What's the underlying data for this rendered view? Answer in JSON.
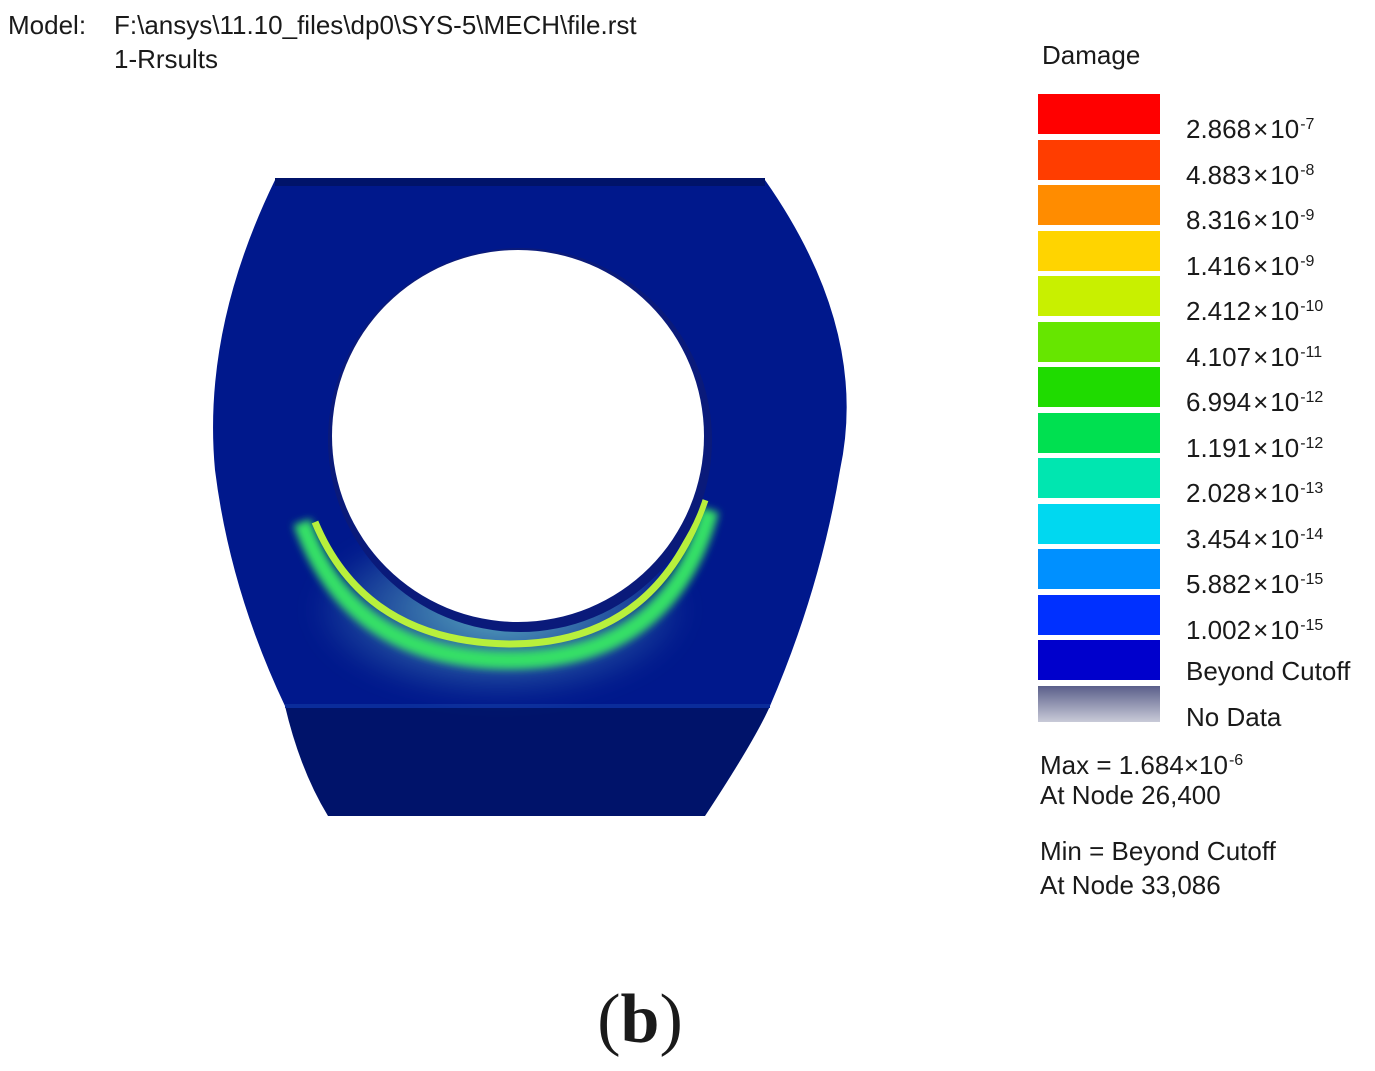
{
  "header": {
    "model_label": "Model:",
    "model_path": "F:\\ansys\\11.10_files\\dp0\\SYS-5\\MECH\\file.rst",
    "results_name": "1-Rrsults"
  },
  "legend": {
    "title": "Damage",
    "bands": [
      {
        "mantissa": "2.868",
        "exponent": "-7",
        "color": "#ff0000"
      },
      {
        "mantissa": "4.883",
        "exponent": "-8",
        "color": "#ff3d00"
      },
      {
        "mantissa": "8.316",
        "exponent": "-9",
        "color": "#ff8c00"
      },
      {
        "mantissa": "1.416",
        "exponent": "-9",
        "color": "#ffd400"
      },
      {
        "mantissa": "2.412",
        "exponent": "-10",
        "color": "#c8f000"
      },
      {
        "mantissa": "4.107",
        "exponent": "-11",
        "color": "#66e600"
      },
      {
        "mantissa": "6.994",
        "exponent": "-12",
        "color": "#1fdb00"
      },
      {
        "mantissa": "1.191",
        "exponent": "-12",
        "color": "#00e050"
      },
      {
        "mantissa": "2.028",
        "exponent": "-13",
        "color": "#00e6b0"
      },
      {
        "mantissa": "3.454",
        "exponent": "-14",
        "color": "#00d8f0"
      },
      {
        "mantissa": "5.882",
        "exponent": "-15",
        "color": "#0090ff"
      },
      {
        "mantissa": "1.002",
        "exponent": "-15",
        "color": "#0030ff"
      },
      {
        "mantissa": "",
        "exponent": "",
        "color": "#0000cc"
      }
    ],
    "beyond_cutoff_label": "Beyond Cutoff",
    "no_data_label": "No Data",
    "no_data_color": "#5a5f8a",
    "times_symbol": "×",
    "base": "10"
  },
  "stats": {
    "max_prefix": "Max = ",
    "max_mantissa": "1.684",
    "max_exponent": "-6",
    "max_node": "At Node 26,400",
    "min_text": "Min = Beyond Cutoff",
    "min_node": "At Node 33,086"
  },
  "model_colors": {
    "body": "#00188c",
    "body_dark": "#00136a",
    "ring_bright": "#b8f03c",
    "ring_green": "#36e066",
    "ring_cyan": "#2fd8e8"
  },
  "panel_label": "(b)"
}
